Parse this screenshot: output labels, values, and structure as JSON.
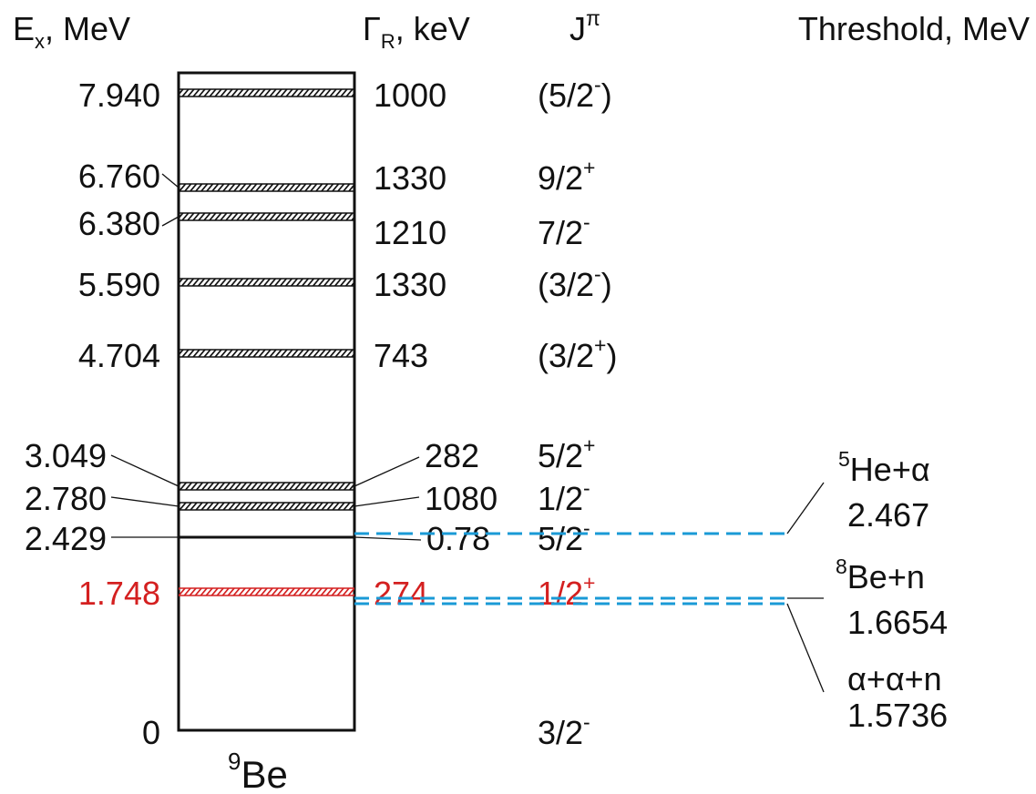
{
  "header": {
    "ex": {
      "base": "E",
      "sub": "x",
      "rest": ", MeV"
    },
    "gamma": {
      "base": "Γ",
      "sub": "R",
      "rest": ", keV"
    },
    "jpi": {
      "base": "J",
      "sup": "π"
    },
    "threshold": "Threshold, MeV"
  },
  "nucleus": {
    "sup": "9",
    "base": "Be"
  },
  "colors": {
    "black": "#111111",
    "red": "#d42020",
    "threshold_line": "#1a9ad6"
  },
  "levels": [
    {
      "energy": 7.94,
      "energy_label": "7.940",
      "width_label": "1000",
      "jpi_base": "(5/2",
      "jpi_sup": "-",
      "jpi_end": ")",
      "style": "hatched",
      "color": "black"
    },
    {
      "energy": 6.76,
      "energy_label": "6.760",
      "width_label": "1330",
      "jpi_base": "9/2",
      "jpi_sup": "+",
      "jpi_end": "",
      "style": "hatched",
      "color": "black"
    },
    {
      "energy": 6.38,
      "energy_label": "6.380",
      "width_label": "1210",
      "jpi_base": "7/2",
      "jpi_sup": "-",
      "jpi_end": "",
      "style": "hatched",
      "color": "black"
    },
    {
      "energy": 5.59,
      "energy_label": "5.590",
      "width_label": "1330",
      "jpi_base": "(3/2",
      "jpi_sup": "-",
      "jpi_end": ")",
      "style": "hatched",
      "color": "black"
    },
    {
      "energy": 4.704,
      "energy_label": "4.704",
      "width_label": "743",
      "jpi_base": "(3/2",
      "jpi_sup": "+",
      "jpi_end": ")",
      "style": "hatched",
      "color": "black"
    },
    {
      "energy": 3.049,
      "energy_label": "3.049",
      "width_label": "282",
      "jpi_base": "5/2",
      "jpi_sup": "+",
      "jpi_end": "",
      "style": "hatched",
      "color": "black"
    },
    {
      "energy": 2.78,
      "energy_label": "2.780",
      "width_label": "1080",
      "jpi_base": "1/2",
      "jpi_sup": "-",
      "jpi_end": "",
      "style": "hatched",
      "color": "black"
    },
    {
      "energy": 2.429,
      "energy_label": "2.429",
      "width_label": "0.78",
      "jpi_base": "5/2",
      "jpi_sup": "-",
      "jpi_end": "",
      "style": "solid",
      "color": "black"
    },
    {
      "energy": 1.748,
      "energy_label": "1.748",
      "width_label": "274",
      "jpi_base": "1/2",
      "jpi_sup": "+",
      "jpi_end": "",
      "style": "hatched",
      "color": "red"
    },
    {
      "energy": 0,
      "energy_label": "0",
      "width_label": "",
      "jpi_base": "3/2",
      "jpi_sup": "-",
      "jpi_end": "",
      "style": "none",
      "color": "black"
    }
  ],
  "thresholds": [
    {
      "energy": 2.467,
      "channel_sup": "5",
      "channel_base": "He+α",
      "value_label": "2.467"
    },
    {
      "energy": 1.6654,
      "channel_sup": "8",
      "channel_base": "Be+n",
      "value_label": "1.6654"
    },
    {
      "energy": 1.5736,
      "channel_sup": "",
      "channel_base": "α+α+n",
      "value_label": "1.5736"
    }
  ]
}
